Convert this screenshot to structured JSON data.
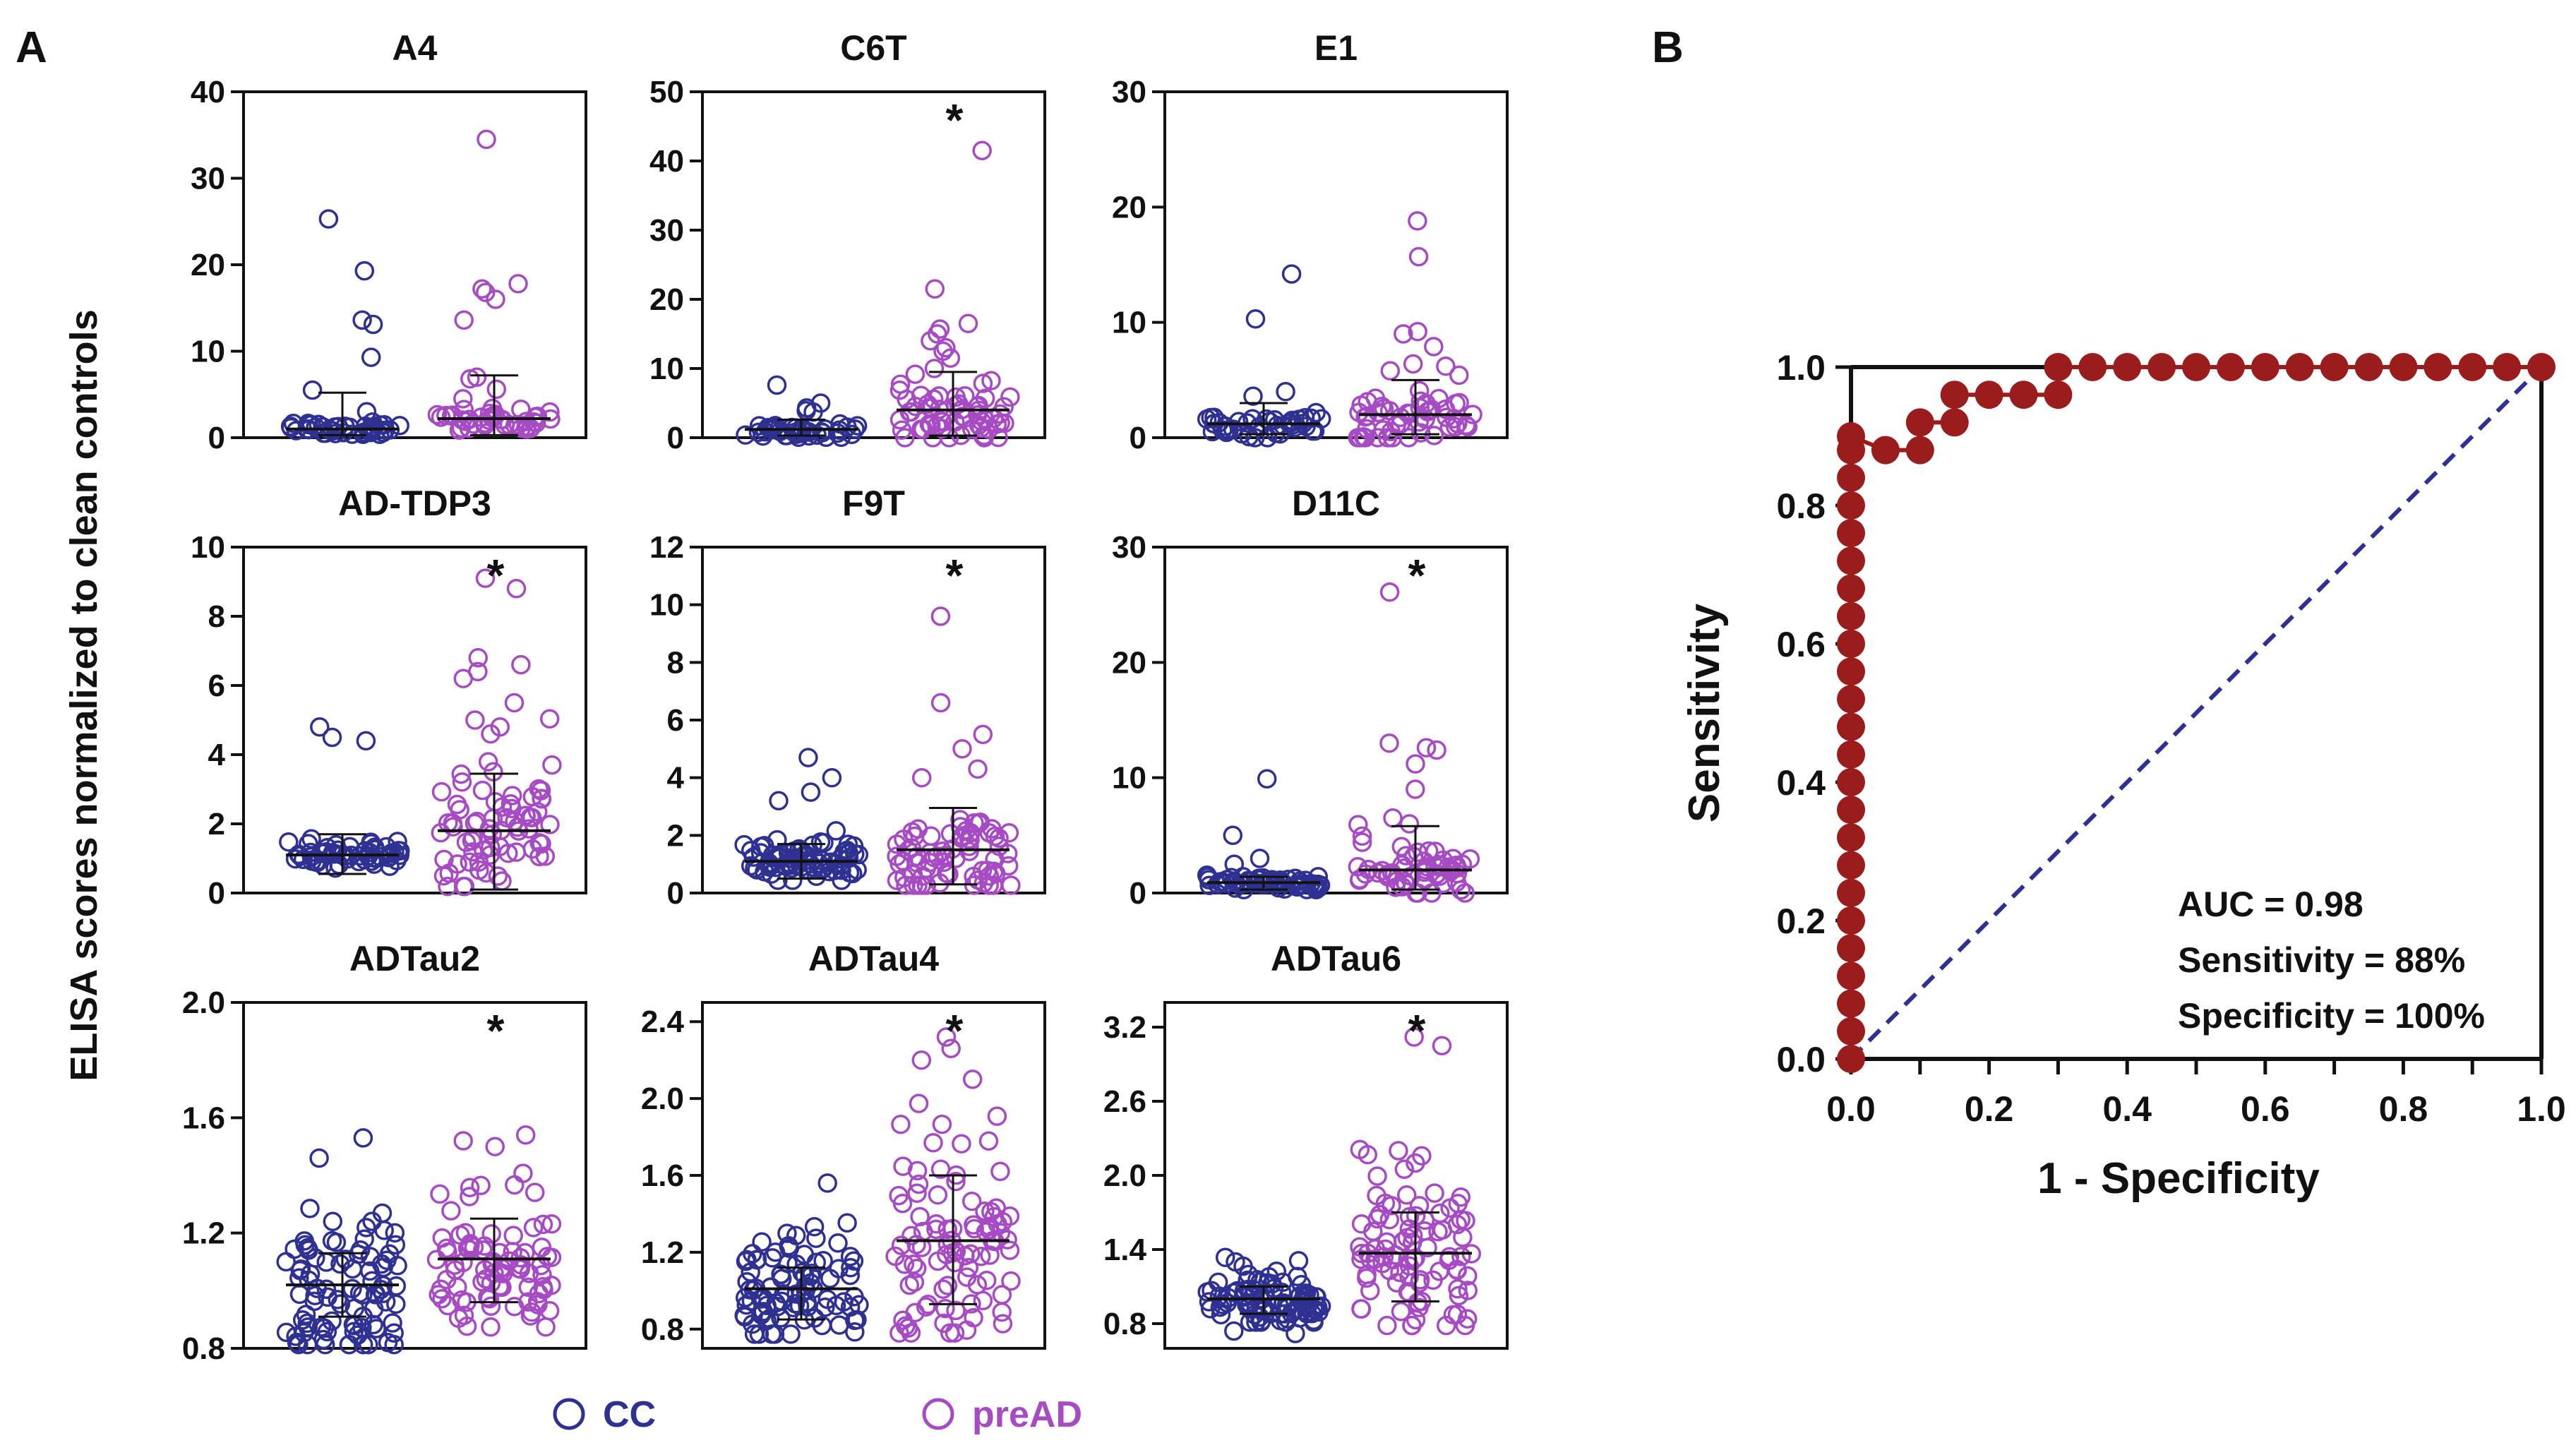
{
  "panel_labels": {
    "a": "A",
    "b": "B"
  },
  "y_axis_label": "ELISA scores normalized to clean controls",
  "legend": [
    {
      "label": "CC",
      "color": "#2e3192"
    },
    {
      "label": "preAD",
      "color": "#a74bc4"
    }
  ],
  "colors": {
    "cc": "#2e3192",
    "pread": "#a74bc4",
    "roc": "#9b1c1c",
    "diag": "#2e3192"
  },
  "significance_marker": "*",
  "chart_data": [
    {
      "type": "scatter",
      "subtype": "dot-plot",
      "title": "A4",
      "ylim": [
        0,
        40
      ],
      "yticks": [
        0,
        10,
        20,
        30,
        40
      ],
      "tick_labels": [
        "0",
        "10",
        "20",
        "30",
        "40"
      ],
      "groups": [
        "CC",
        "preAD"
      ],
      "significant": false,
      "series": [
        {
          "name": "CC",
          "n": 40,
          "median": 1.0,
          "mean": 1.0,
          "spread": 0.35,
          "iqr": [
            0.7,
            1.4
          ],
          "error_bar": [
            0.3,
            5.2
          ],
          "outliers": [
            25.3,
            19.3,
            13.6,
            13.1,
            9.3,
            5.5,
            3.0
          ]
        },
        {
          "name": "preAD",
          "n": 42,
          "median": 2.0,
          "mean": 2.2,
          "spread": 0.7,
          "iqr": [
            0.8,
            3.5
          ],
          "error_bar": [
            0.3,
            7.2
          ],
          "outliers": [
            34.5,
            17.8,
            17.2,
            16.8,
            16.0,
            13.6,
            7.0,
            6.8,
            5.6,
            4.5
          ]
        }
      ]
    },
    {
      "type": "scatter",
      "subtype": "dot-plot",
      "title": "C6T",
      "ylim": [
        0,
        50
      ],
      "yticks": [
        0,
        10,
        20,
        30,
        40,
        50
      ],
      "tick_labels": [
        "0",
        "10",
        "20",
        "30",
        "40",
        "50"
      ],
      "groups": [
        "CC",
        "preAD"
      ],
      "significant": true,
      "series": [
        {
          "name": "CC",
          "n": 40,
          "median": 1.0,
          "mean": 1.2,
          "spread": 0.6,
          "iqr": [
            0.6,
            1.8
          ],
          "error_bar": [
            0.3,
            2.6
          ],
          "outliers": [
            7.6,
            5.0,
            4.3,
            3.9,
            3.7
          ]
        },
        {
          "name": "preAD",
          "n": 60,
          "median": 3.5,
          "mean": 4.0,
          "spread": 2.5,
          "iqr": [
            1.0,
            5.0
          ],
          "error_bar": [
            0.3,
            9.5
          ],
          "outliers": [
            41.5,
            21.5,
            16.5,
            15.7,
            15.0,
            14.0,
            13.0,
            12.5,
            11.5,
            10.0
          ]
        }
      ]
    },
    {
      "type": "scatter",
      "subtype": "dot-plot",
      "title": "E1",
      "ylim": [
        0,
        30
      ],
      "yticks": [
        0,
        10,
        20,
        30
      ],
      "tick_labels": [
        "0",
        "10",
        "20",
        "30"
      ],
      "groups": [
        "CC",
        "preAD"
      ],
      "significant": false,
      "series": [
        {
          "name": "CC",
          "n": 42,
          "median": 1.0,
          "mean": 1.2,
          "spread": 0.6,
          "iqr": [
            0.5,
            1.8
          ],
          "error_bar": [
            0.3,
            3.0
          ],
          "outliers": [
            14.2,
            10.3,
            4.0,
            3.6
          ]
        },
        {
          "name": "preAD",
          "n": 50,
          "median": 1.8,
          "mean": 2.0,
          "spread": 1.3,
          "iqr": [
            0.7,
            3.0
          ],
          "error_bar": [
            0.3,
            5.0
          ],
          "outliers": [
            18.8,
            15.7,
            9.2,
            9.0,
            7.9,
            6.4,
            6.2,
            5.8
          ]
        }
      ]
    },
    {
      "type": "scatter",
      "subtype": "dot-plot",
      "title": "AD-TDP3",
      "ylim": [
        0,
        10
      ],
      "yticks": [
        0,
        2,
        4,
        6,
        8,
        10
      ],
      "tick_labels": [
        "0",
        "2",
        "4",
        "6",
        "8",
        "10"
      ],
      "groups": [
        "CC",
        "preAD"
      ],
      "significant": true,
      "series": [
        {
          "name": "CC",
          "n": 60,
          "median": 1.1,
          "mean": 1.1,
          "spread": 0.2,
          "iqr": [
            0.9,
            1.3
          ],
          "error_bar": [
            0.55,
            1.7
          ],
          "outliers": [
            4.8,
            4.5,
            4.4
          ]
        },
        {
          "name": "preAD",
          "n": 70,
          "median": 1.8,
          "mean": 1.8,
          "spread": 0.9,
          "iqr": [
            1.0,
            2.5
          ],
          "error_bar": [
            0.1,
            3.45
          ],
          "outliers": [
            9.1,
            8.8,
            6.8,
            6.6,
            6.4,
            6.2,
            5.5,
            5.0,
            4.8,
            4.6
          ]
        }
      ]
    },
    {
      "type": "scatter",
      "subtype": "dot-plot",
      "title": "F9T",
      "ylim": [
        0,
        12
      ],
      "yticks": [
        0,
        2,
        4,
        6,
        8,
        10,
        12
      ],
      "tick_labels": [
        "0",
        "2",
        "4",
        "6",
        "8",
        "10",
        "12"
      ],
      "groups": [
        "CC",
        "preAD"
      ],
      "significant": true,
      "series": [
        {
          "name": "CC",
          "n": 75,
          "median": 1.1,
          "mean": 1.1,
          "spread": 0.4,
          "iqr": [
            0.8,
            1.4
          ],
          "error_bar": [
            0.5,
            1.7
          ],
          "outliers": [
            4.7,
            4.0,
            3.5,
            3.2
          ]
        },
        {
          "name": "preAD",
          "n": 70,
          "median": 1.4,
          "mean": 1.5,
          "spread": 0.7,
          "iqr": [
            0.9,
            2.0
          ],
          "error_bar": [
            0.3,
            2.95
          ],
          "outliers": [
            9.6,
            6.6,
            5.5,
            5.0,
            4.3,
            4.0
          ]
        }
      ]
    },
    {
      "type": "scatter",
      "subtype": "dot-plot",
      "title": "D11C",
      "ylim": [
        0,
        30
      ],
      "yticks": [
        0,
        10,
        20,
        30
      ],
      "tick_labels": [
        "0",
        "10",
        "20",
        "30"
      ],
      "groups": [
        "CC",
        "preAD"
      ],
      "significant": true,
      "series": [
        {
          "name": "CC",
          "n": 60,
          "median": 0.9,
          "mean": 0.9,
          "spread": 0.35,
          "iqr": [
            0.6,
            1.2
          ],
          "error_bar": [
            0.3,
            1.4
          ],
          "outliers": [
            9.9,
            5.0,
            3.0,
            2.5
          ]
        },
        {
          "name": "preAD",
          "n": 55,
          "median": 1.8,
          "mean": 2.0,
          "spread": 1.3,
          "iqr": [
            0.7,
            3.0
          ],
          "error_bar": [
            0.3,
            5.8
          ],
          "outliers": [
            26.1,
            13.0,
            12.6,
            12.4,
            11.2,
            9.0,
            6.5,
            6.0
          ]
        }
      ]
    },
    {
      "type": "scatter",
      "subtype": "dot-plot",
      "title": "ADTau2",
      "ylim": [
        0.8,
        2.0
      ],
      "yticks": [
        0.8,
        1.2,
        1.6,
        2.0
      ],
      "tick_labels": [
        "0.8",
        "1.2",
        "1.6",
        "2.0"
      ],
      "groups": [
        "CC",
        "preAD"
      ],
      "significant": true,
      "series": [
        {
          "name": "CC",
          "n": 90,
          "median": 1.01,
          "mean": 1.02,
          "spread": 0.13,
          "iqr": [
            0.93,
            1.1
          ],
          "error_bar": [
            0.91,
            1.13
          ],
          "outliers": [
            1.53,
            1.46
          ]
        },
        {
          "name": "preAD",
          "n": 85,
          "median": 1.1,
          "mean": 1.11,
          "spread": 0.14,
          "iqr": [
            1.0,
            1.22
          ],
          "error_bar": [
            0.96,
            1.25
          ],
          "outliers": [
            1.54,
            1.52,
            1.5
          ]
        }
      ]
    },
    {
      "type": "scatter",
      "subtype": "dot-plot",
      "title": "ADTau4",
      "ylim": [
        0.7,
        2.5
      ],
      "yticks": [
        0.8,
        1.2,
        1.6,
        2.0,
        2.4
      ],
      "tick_labels": [
        "0.8",
        "1.2",
        "1.6",
        "2.0",
        "2.4"
      ],
      "groups": [
        "CC",
        "preAD"
      ],
      "significant": true,
      "series": [
        {
          "name": "CC",
          "n": 90,
          "median": 1.01,
          "mean": 1.01,
          "spread": 0.14,
          "iqr": [
            0.9,
            1.1
          ],
          "error_bar": [
            0.85,
            1.12
          ],
          "outliers": [
            1.56
          ]
        },
        {
          "name": "preAD",
          "n": 90,
          "median": 1.25,
          "mean": 1.26,
          "spread": 0.3,
          "iqr": [
            1.05,
            1.5
          ],
          "error_bar": [
            0.93,
            1.6
          ],
          "outliers": [
            2.32,
            2.26,
            2.2,
            2.1
          ]
        }
      ]
    },
    {
      "type": "scatter",
      "subtype": "dot-plot",
      "title": "ADTau6",
      "ylim": [
        0.6,
        3.4
      ],
      "yticks": [
        0.8,
        1.4,
        2.0,
        2.6,
        3.2
      ],
      "tick_labels": [
        "0.8",
        "1.4",
        "2.0",
        "2.6",
        "3.2"
      ],
      "groups": [
        "CC",
        "preAD"
      ],
      "significant": true,
      "series": [
        {
          "name": "CC",
          "n": 90,
          "median": 1.0,
          "mean": 1.0,
          "spread": 0.12,
          "iqr": [
            0.92,
            1.08
          ],
          "error_bar": [
            0.88,
            1.1
          ],
          "outliers": [
            0.72,
            0.74,
            1.3
          ]
        },
        {
          "name": "preAD",
          "n": 90,
          "median": 1.35,
          "mean": 1.37,
          "spread": 0.35,
          "iqr": [
            1.1,
            1.6
          ],
          "error_bar": [
            0.98,
            1.7
          ],
          "outliers": [
            3.12,
            3.05,
            2.2,
            2.1,
            2.05
          ]
        }
      ]
    },
    {
      "type": "line",
      "subtype": "roc",
      "title": "",
      "xlabel": "1 - Specificity",
      "ylabel": "Sensitivity",
      "xlim": [
        0,
        1
      ],
      "ylim": [
        0,
        1
      ],
      "xticks": [
        0,
        0.1,
        0.2,
        0.3,
        0.4,
        0.5,
        0.6,
        0.7,
        0.8,
        0.9,
        1.0
      ],
      "xtick_labels": [
        "0.0",
        "",
        "0.2",
        "",
        "0.4",
        "",
        "0.6",
        "",
        "0.8",
        "",
        "1.0"
      ],
      "yticks": [
        0,
        0.2,
        0.4,
        0.6,
        0.8,
        1.0
      ],
      "ytick_labels": [
        "0.0",
        "0.2",
        "0.4",
        "0.6",
        "0.8",
        "1.0"
      ],
      "roc_curve": {
        "x": [
          0,
          0,
          0,
          0,
          0,
          0,
          0,
          0,
          0,
          0,
          0,
          0,
          0,
          0,
          0,
          0,
          0,
          0,
          0,
          0,
          0,
          0,
          0,
          0,
          0.05,
          0.1,
          0.1,
          0.15,
          0.15,
          0.2,
          0.25,
          0.3,
          0.3,
          0.35,
          0.4,
          0.45,
          0.5,
          0.55,
          0.6,
          0.65,
          0.7,
          0.75,
          0.8,
          0.85,
          0.9,
          0.95,
          1.0
        ],
        "y": [
          0,
          0.04,
          0.08,
          0.12,
          0.16,
          0.2,
          0.24,
          0.28,
          0.32,
          0.36,
          0.4,
          0.44,
          0.48,
          0.52,
          0.56,
          0.6,
          0.64,
          0.68,
          0.72,
          0.76,
          0.8,
          0.84,
          0.88,
          0.9,
          0.88,
          0.88,
          0.92,
          0.92,
          0.96,
          0.96,
          0.96,
          0.96,
          1.0,
          1.0,
          1.0,
          1.0,
          1.0,
          1.0,
          1.0,
          1.0,
          1.0,
          1.0,
          1.0,
          1.0,
          1.0,
          1.0,
          1.0
        ]
      },
      "reference_line": {
        "x": [
          0,
          1
        ],
        "y": [
          0,
          1
        ]
      },
      "annotations": [
        "AUC = 0.98",
        "Sensitivity = 88%",
        "Specificity = 100%"
      ]
    }
  ]
}
